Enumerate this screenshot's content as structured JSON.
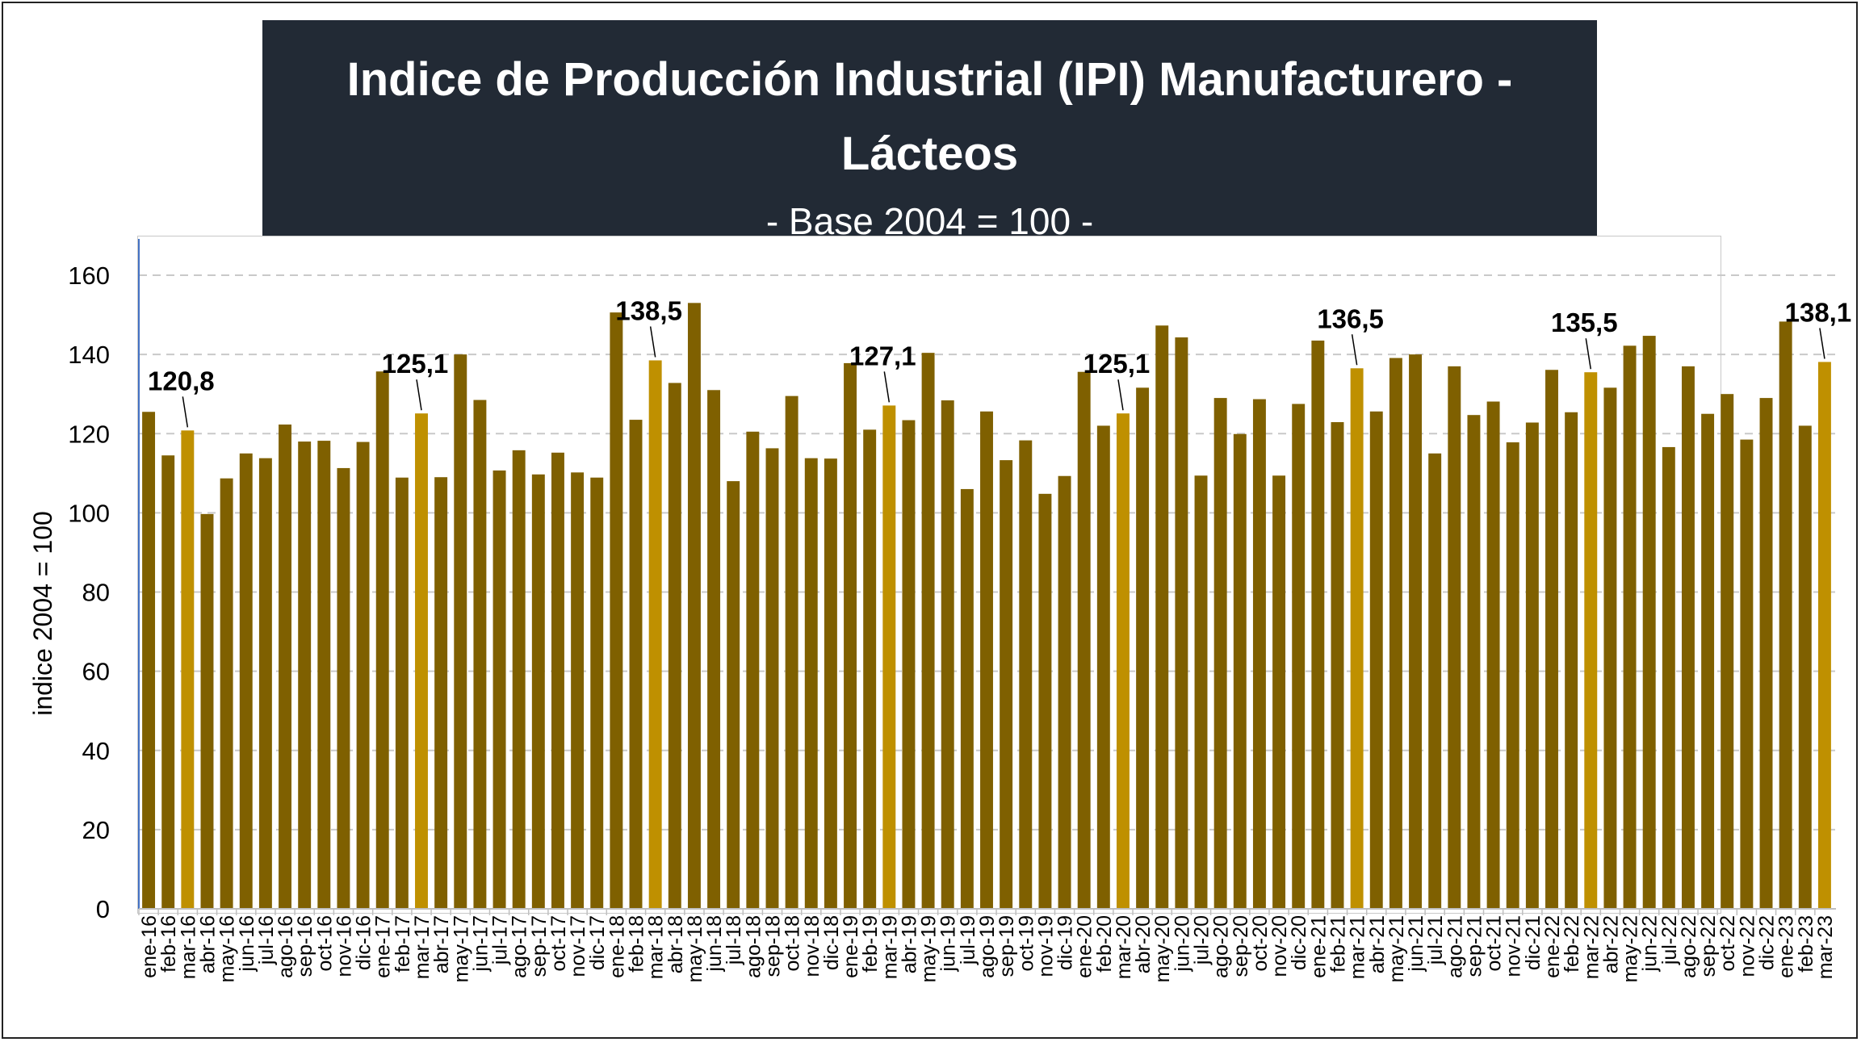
{
  "chart_data": {
    "type": "bar",
    "title": "Indice de Producción Industrial (IPI) Manufacturero - Lácteos",
    "subtitle": "- Base 2004 = 100 -",
    "ylabel": "indice 2004 = 100",
    "xlabel": "",
    "ylim": [
      0,
      160
    ],
    "yticks": [
      "0",
      "20",
      "40",
      "60",
      "80",
      "100",
      "120",
      "140",
      "160"
    ],
    "grid": "horizontal dashed",
    "colors": {
      "bar": "#7f6000",
      "highlight": "#bf9000"
    },
    "categories": [
      "ene-16",
      "feb-16",
      "mar-16",
      "abr-16",
      "may-16",
      "jun-16",
      "jul-16",
      "ago-16",
      "sep-16",
      "oct-16",
      "nov-16",
      "dic-16",
      "ene-17",
      "feb-17",
      "mar-17",
      "abr-17",
      "may-17",
      "jun-17",
      "jul-17",
      "ago-17",
      "sep-17",
      "oct-17",
      "nov-17",
      "dic-17",
      "ene-18",
      "feb-18",
      "mar-18",
      "abr-18",
      "may-18",
      "jun-18",
      "jul-18",
      "ago-18",
      "sep-18",
      "oct-18",
      "nov-18",
      "dic-18",
      "ene-19",
      "feb-19",
      "mar-19",
      "abr-19",
      "may-19",
      "jun-19",
      "jul-19",
      "ago-19",
      "sep-19",
      "oct-19",
      "nov-19",
      "dic-19",
      "ene-20",
      "feb-20",
      "mar-20",
      "abr-20",
      "may-20",
      "jun-20",
      "jul-20",
      "ago-20",
      "sep-20",
      "oct-20",
      "nov-20",
      "dic-20",
      "ene-21",
      "feb-21",
      "mar-21",
      "abr-21",
      "may-21",
      "jun-21",
      "jul-21",
      "ago-21",
      "sep-21",
      "oct-21",
      "nov-21",
      "dic-21",
      "ene-22",
      "feb-22",
      "mar-22",
      "abr-22",
      "may-22",
      "jun-22",
      "jul-22",
      "ago-22",
      "sep-22",
      "oct-22",
      "nov-22",
      "dic-22",
      "ene-23",
      "feb-23",
      "mar-23"
    ],
    "values": [
      125.5,
      114.5,
      120.8,
      99.7,
      108.7,
      115,
      113.8,
      122.3,
      118,
      118.2,
      111.3,
      117.9,
      135.7,
      108.9,
      125.1,
      109,
      140,
      128.5,
      110.7,
      115.8,
      109.7,
      115.2,
      110.2,
      108.9,
      150.6,
      123.5,
      138.5,
      132.8,
      153,
      131,
      108,
      120.5,
      116.3,
      129.5,
      113.8,
      113.7,
      137.8,
      121,
      127.1,
      123.4,
      140.4,
      128.4,
      106,
      125.6,
      113.3,
      118.3,
      104.8,
      109.3,
      135.6,
      122,
      125.1,
      131.6,
      147.3,
      144.3,
      109.4,
      129,
      119.9,
      128.7,
      109.4,
      127.5,
      143.5,
      122.9,
      136.5,
      125.6,
      139.1,
      140,
      115,
      137,
      124.7,
      128.1,
      117.8,
      122.8,
      136.1,
      125.4,
      135.5,
      131.6,
      142.2,
      144.7,
      116.6,
      137,
      125,
      130,
      118.5,
      129,
      148.3,
      122,
      138.1
    ],
    "highlight_categories": [
      "mar-16",
      "mar-17",
      "mar-18",
      "mar-19",
      "mar-20",
      "mar-21",
      "mar-22",
      "mar-23"
    ],
    "data_labels": [
      {
        "category": "mar-16",
        "text": "120,8"
      },
      {
        "category": "mar-17",
        "text": "125,1"
      },
      {
        "category": "mar-18",
        "text": "138,5"
      },
      {
        "category": "mar-19",
        "text": "127,1"
      },
      {
        "category": "mar-20",
        "text": "125,1"
      },
      {
        "category": "mar-21",
        "text": "136,5"
      },
      {
        "category": "mar-22",
        "text": "135,5"
      },
      {
        "category": "mar-23",
        "text": "138,1"
      }
    ]
  }
}
